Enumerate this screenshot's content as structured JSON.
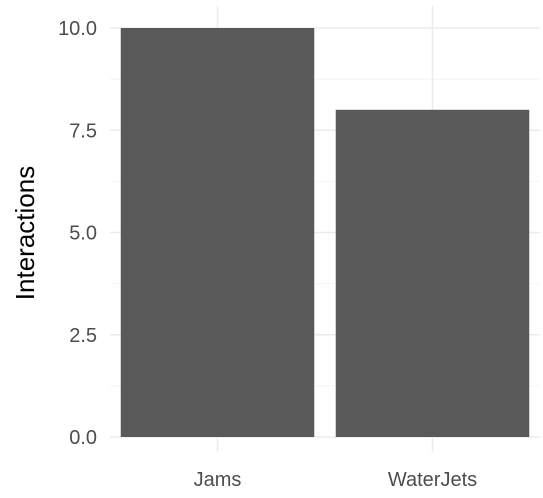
{
  "chart_data": {
    "type": "bar",
    "title": "",
    "xlabel": "",
    "ylabel": "Interactions",
    "categories": [
      "Jams",
      "WaterJets"
    ],
    "values": [
      10,
      8
    ],
    "ylim": [
      0,
      10
    ],
    "yticks": [
      0,
      2.5,
      5,
      7.5,
      10
    ],
    "ytick_labels": [
      "0.0",
      "2.5",
      "5.0",
      "7.5",
      "10.0"
    ],
    "grid": true,
    "legend": "none",
    "colors": {
      "bar": "#595959",
      "grid_major": "#ebebeb",
      "grid_minor": "#f4f4f4",
      "tick_text": "#4d4d4d",
      "background": "#ffffff"
    }
  }
}
